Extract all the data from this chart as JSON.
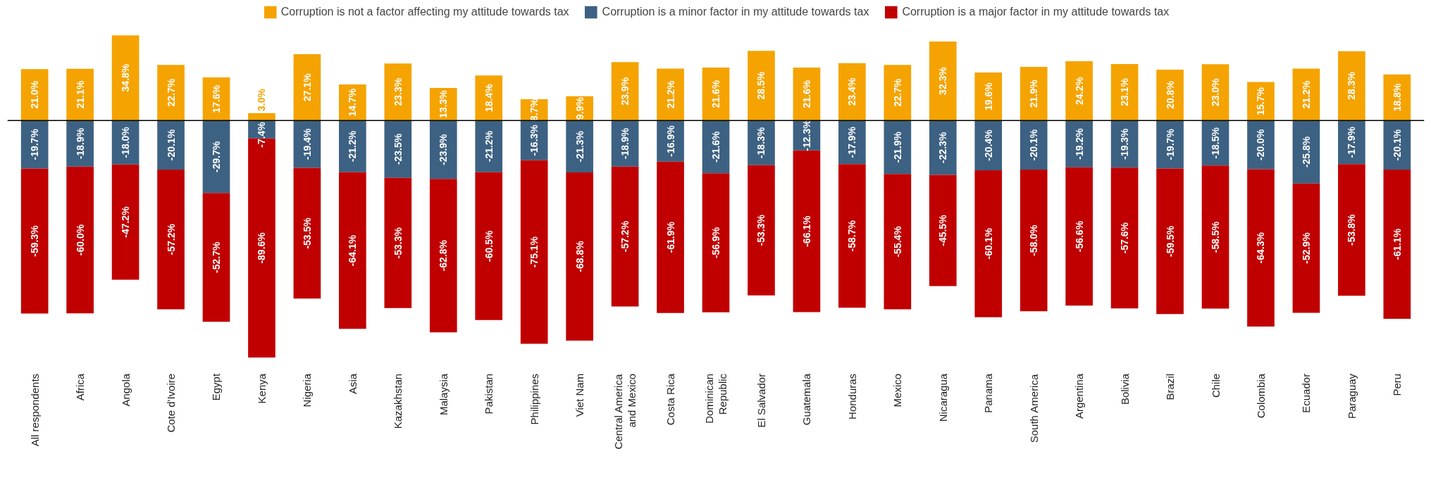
{
  "chart_data": {
    "type": "bar",
    "stacked": true,
    "data_labels": true,
    "legend": "top",
    "grid": false,
    "tick_labels": "x",
    "categories": [
      "All respondents",
      "Africa",
      "Angola",
      "Cote d'Ivoire",
      "Egypt",
      "Kenya",
      "Nigeria",
      "Asia",
      "Kazakhstan",
      "Malaysia",
      "Pakistan",
      "Philippines",
      "Viet Nam",
      "Central America and Mexico",
      "Costa Rica",
      "Dominican Republic",
      "El Salvador",
      "Guatemala",
      "Honduras",
      "Mexico",
      "Nicaragua",
      "Panama",
      "South America",
      "Argentina",
      "Bolivia",
      "Brazil",
      "Chile",
      "Colombia",
      "Ecuador",
      "Paraguay",
      "Peru"
    ],
    "ref_lines": [
      {
        "axis": "y",
        "value": 0,
        "color": "#000000"
      }
    ],
    "series": [
      {
        "name": "Corruption is not a factor affecting my attitude towards tax",
        "color": "#f5a300",
        "values": [
          21.0,
          21.1,
          34.8,
          22.7,
          17.6,
          3.0,
          27.1,
          14.7,
          23.3,
          13.3,
          18.4,
          8.7,
          9.9,
          23.9,
          21.2,
          21.6,
          28.5,
          21.6,
          23.4,
          22.7,
          32.3,
          19.6,
          21.9,
          24.2,
          23.1,
          20.8,
          23.0,
          15.7,
          21.2,
          28.3,
          18.8
        ],
        "value_labels": [
          "21.0%",
          "21.1%",
          "34.8%",
          "22.7%",
          "17.6%",
          "3.0%",
          "27.1%",
          "14.7%",
          "23.3%",
          "13.3%",
          "18.4%",
          "8.7%",
          "9.9%",
          "23.9%",
          "21.2%",
          "21.6%",
          "28.5%",
          "21.6%",
          "23.4%",
          "22.7%",
          "32.3%",
          "19.6%",
          "21.9%",
          "24.2%",
          "23.1%",
          "20.8%",
          "23.0%",
          "15.7%",
          "21.2%",
          "28.3%",
          "18.8%"
        ]
      },
      {
        "name": "Corruption is a minor factor in my attitude towards tax",
        "color": "#3d6182",
        "values": [
          -19.7,
          -18.9,
          -18.0,
          -20.1,
          -29.7,
          -7.4,
          -19.4,
          -21.2,
          -23.5,
          -23.9,
          -21.2,
          -16.3,
          -21.3,
          -18.9,
          -16.9,
          -21.6,
          -18.3,
          -12.3,
          -17.9,
          -21.9,
          -22.3,
          -20.4,
          -20.1,
          -19.2,
          -19.3,
          -19.7,
          -18.5,
          -20.0,
          -25.8,
          -17.9,
          -20.1
        ],
        "value_labels": [
          "-19.7%",
          "-18.9%",
          "-18.0%",
          "-20.1%",
          "-29.7%",
          "-7.4%",
          "-19.4%",
          "-21.2%",
          "-23.5%",
          "-23.9%",
          "-21.2%",
          "-16.3%",
          "-21.3%",
          "-18.9%",
          "-16.9%",
          "-21.6%",
          "-18.3%",
          "-12.3%",
          "-17.9%",
          "-21.9%",
          "-22.3%",
          "-20.4%",
          "-20.1%",
          "-19.2%",
          "-19.3%",
          "-19.7%",
          "-18.5%",
          "-20.0%",
          "-25.8%",
          "-17.9%",
          "-20.1%"
        ]
      },
      {
        "name": "Corruption is a major factor in my attitude towards tax",
        "color": "#c00000",
        "values": [
          -59.3,
          -60.0,
          -47.2,
          -57.2,
          -52.7,
          -89.6,
          -53.5,
          -64.1,
          -53.3,
          -62.8,
          -60.5,
          -75.1,
          -68.8,
          -57.2,
          -61.9,
          -56.9,
          -53.3,
          -66.1,
          -58.7,
          -55.4,
          -45.5,
          -60.1,
          -58.0,
          -56.6,
          -57.6,
          -59.5,
          -58.5,
          -64.3,
          -52.9,
          -53.8,
          -61.1
        ],
        "value_labels": [
          "-59.3%",
          "-60.0%",
          "-47.2%",
          "-57.2%",
          "-52.7%",
          "-89.6%",
          "-53.5%",
          "-64.1%",
          "-53.3%",
          "-62.8%",
          "-60.5%",
          "-75.1%",
          "-68.8%",
          "-57.2%",
          "-61.9%",
          "-56.9%",
          "-53.3%",
          "-66.1%",
          "-58.7%",
          "-55.4%",
          "-45.5%",
          "-60.1%",
          "-58.0%",
          "-56.6%",
          "-57.6%",
          "-59.5%",
          "-58.5%",
          "-64.3%",
          "-52.9%",
          "-53.8%",
          "-61.1%"
        ]
      }
    ]
  }
}
